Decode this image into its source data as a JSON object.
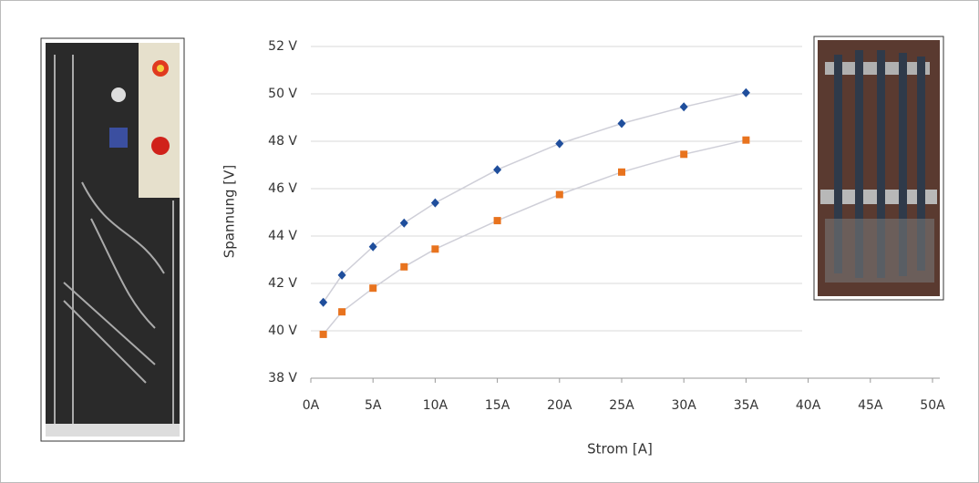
{
  "chart_data": {
    "type": "scatter",
    "xlabel": "Strom [A]",
    "ylabel": "Spannung [V]",
    "xlim": [
      0,
      50
    ],
    "ylim": [
      38,
      52
    ],
    "xticks": [
      {
        "value": 0,
        "label": "0A"
      },
      {
        "value": 5,
        "label": "5A"
      },
      {
        "value": 10,
        "label": "10A"
      },
      {
        "value": 15,
        "label": "15A"
      },
      {
        "value": 20,
        "label": "20A"
      },
      {
        "value": 25,
        "label": "25A"
      },
      {
        "value": 30,
        "label": "30A"
      },
      {
        "value": 35,
        "label": "35A"
      },
      {
        "value": 40,
        "label": "40A"
      },
      {
        "value": 45,
        "label": "45A"
      },
      {
        "value": 50,
        "label": "50A"
      }
    ],
    "yticks": [
      {
        "value": 38,
        "label": "38 V"
      },
      {
        "value": 40,
        "label": "40 V"
      },
      {
        "value": 42,
        "label": "42 V"
      },
      {
        "value": 44,
        "label": "44 V"
      },
      {
        "value": 46,
        "label": "46 V"
      },
      {
        "value": 48,
        "label": "48 V"
      },
      {
        "value": 50,
        "label": "50 V"
      },
      {
        "value": 52,
        "label": "52 V"
      }
    ],
    "grid": true,
    "x": [
      1,
      2.5,
      5,
      7.5,
      10,
      15,
      20,
      25,
      30,
      35
    ],
    "series": [
      {
        "color": "#1f4e9c",
        "marker": "diamond",
        "values": [
          41.2,
          42.35,
          43.55,
          44.55,
          45.4,
          46.8,
          47.9,
          48.75,
          49.45,
          50.05
        ]
      },
      {
        "color": "#e8731e",
        "marker": "square",
        "values": [
          39.85,
          40.8,
          41.8,
          42.7,
          43.45,
          44.65,
          45.75,
          46.7,
          47.45,
          48.05
        ]
      }
    ]
  }
}
